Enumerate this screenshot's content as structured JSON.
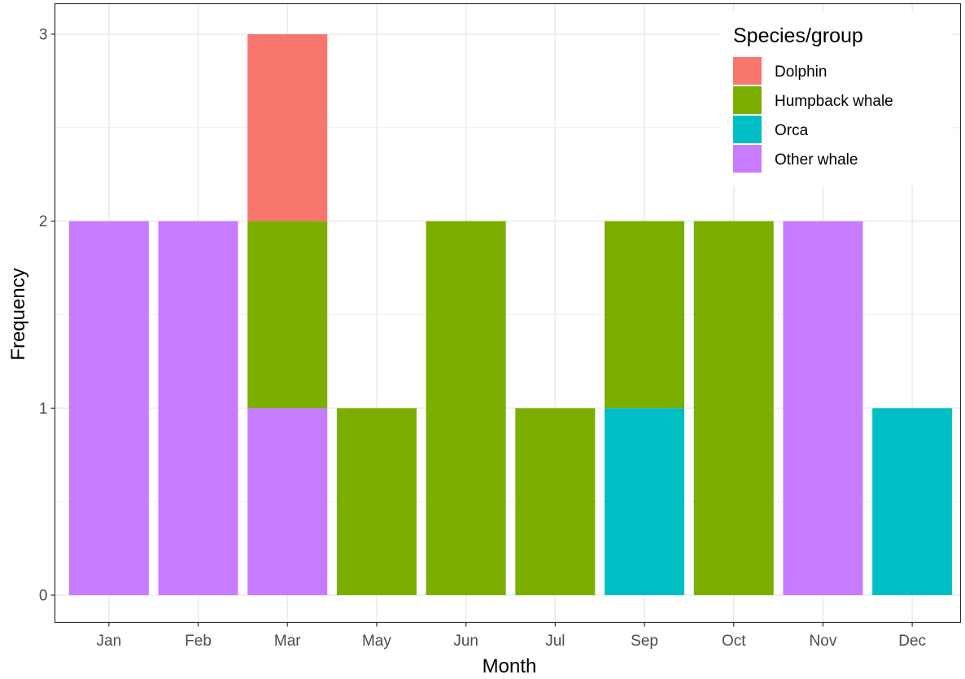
{
  "chart_data": {
    "type": "bar",
    "stacked": true,
    "xlabel": "Month",
    "ylabel": "Frequency",
    "categories": [
      "Jan",
      "Feb",
      "Mar",
      "May",
      "Jun",
      "Jul",
      "Sep",
      "Oct",
      "Nov",
      "Dec"
    ],
    "ylim": [
      0,
      3
    ],
    "yticks": [
      0,
      1,
      2,
      3
    ],
    "grid": true,
    "legend": {
      "title": "Species/group",
      "position": "top-right"
    },
    "series": [
      {
        "name": "Dolphin",
        "color": "#F8766D",
        "values": [
          0,
          0,
          1,
          0,
          0,
          0,
          0,
          0,
          0,
          0
        ]
      },
      {
        "name": "Humpback whale",
        "color": "#7CAE00",
        "values": [
          0,
          0,
          1,
          1,
          2,
          1,
          1,
          2,
          0,
          0
        ]
      },
      {
        "name": "Orca",
        "color": "#00BFC4",
        "values": [
          0,
          0,
          0,
          0,
          0,
          0,
          1,
          0,
          0,
          1
        ]
      },
      {
        "name": "Other whale",
        "color": "#C77CFF",
        "values": [
          2,
          2,
          1,
          0,
          0,
          0,
          0,
          0,
          2,
          0
        ]
      }
    ]
  }
}
